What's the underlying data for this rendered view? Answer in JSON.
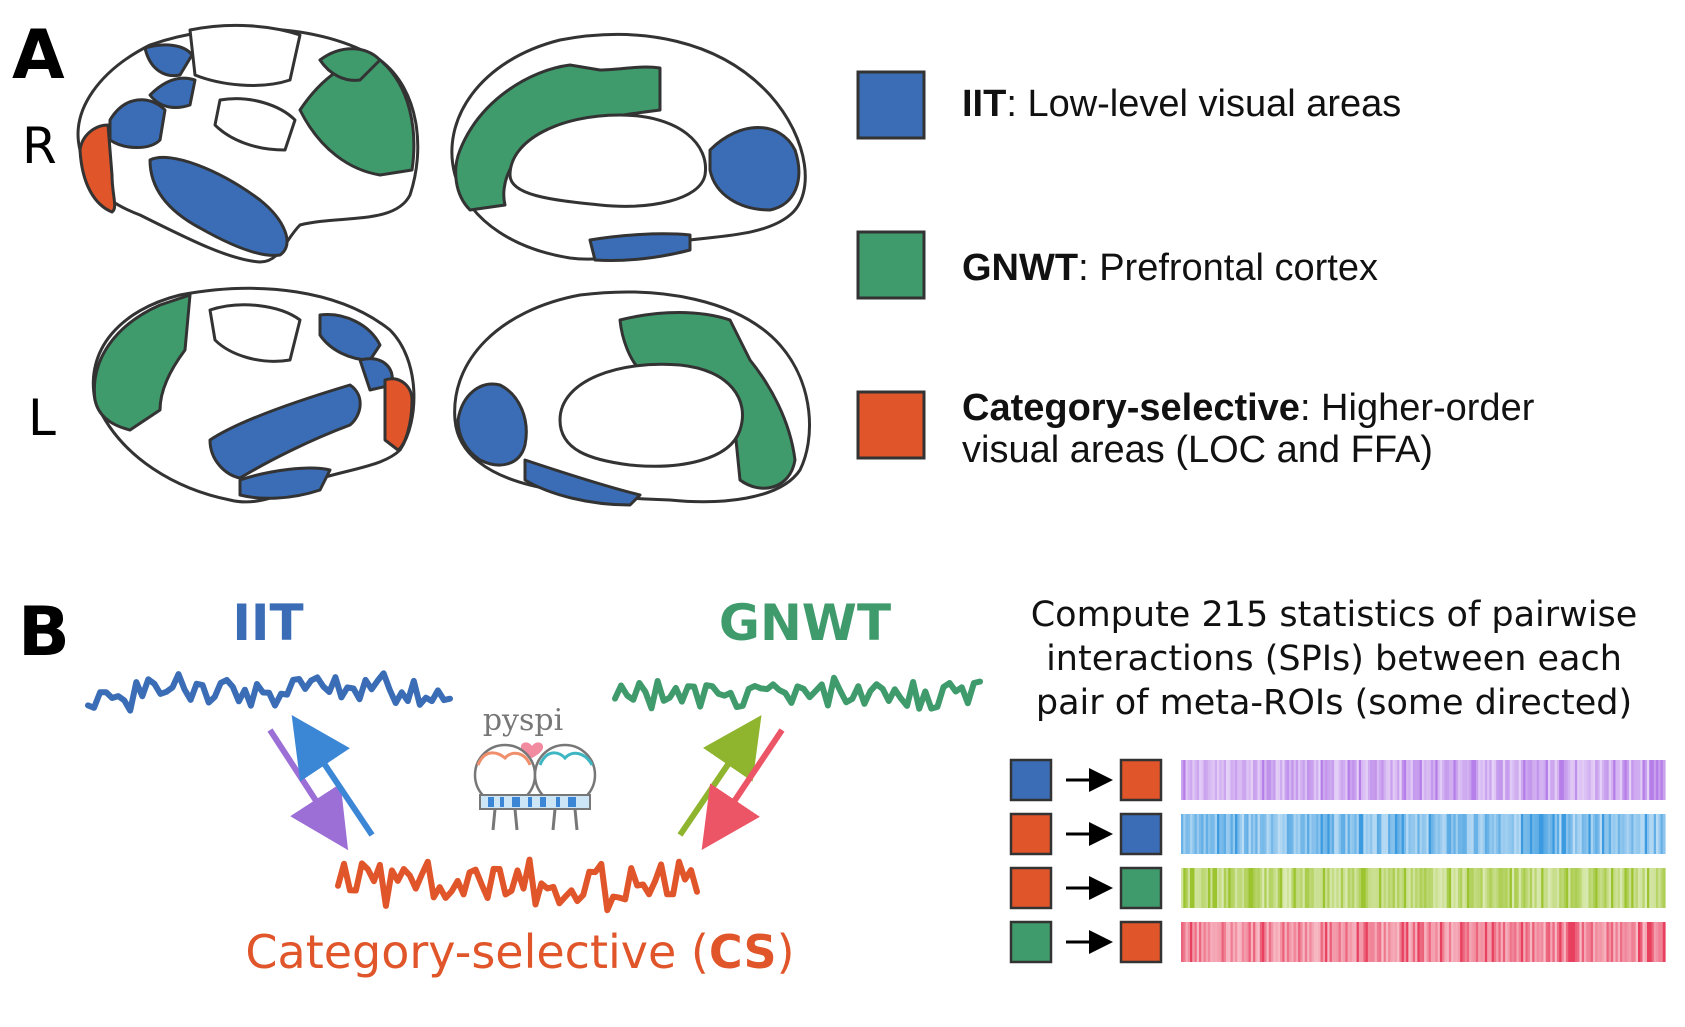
{
  "panel_a": {
    "letter": "A",
    "hemisphere_labels": [
      "R",
      "L"
    ],
    "legend": [
      {
        "bold": "IIT",
        "rest": ": Low-level visual areas",
        "rest2": "",
        "color": "#3a6db5"
      },
      {
        "bold": "GNWT",
        "rest": ": Prefrontal cortex",
        "rest2": "",
        "color": "#3f9a6c"
      },
      {
        "bold": "Category-selective",
        "rest": ": Higher-order",
        "rest2": "visual areas (LOC and FFA)",
        "color": "#e0552a"
      }
    ]
  },
  "panel_b": {
    "letter": "B",
    "iit_label": "IIT",
    "gnwt_label": "GNWT",
    "cs_label_prefix": "Category-selective (",
    "cs_label_bold": "CS",
    "cs_label_suffix": ")",
    "pyspi_logo": "pyspi",
    "compute_text": [
      "Compute 215 statistics of pairwise",
      "interactions (SPIs) between each",
      "pair of meta-ROIs (some directed)"
    ],
    "pairs": [
      {
        "from": "IIT",
        "to": "CS",
        "from_color": "#3a6db5",
        "to_color": "#e0552a",
        "bar_color": "#b57ee8"
      },
      {
        "from": "CS",
        "to": "IIT",
        "from_color": "#e0552a",
        "to_color": "#3a6db5",
        "bar_color": "#3c9be0"
      },
      {
        "from": "CS",
        "to": "GNWT",
        "from_color": "#e0552a",
        "to_color": "#3f9a6c",
        "bar_color": "#9cc42f"
      },
      {
        "from": "GNWT",
        "to": "CS",
        "from_color": "#3f9a6c",
        "to_color": "#e0552a",
        "bar_color": "#e8415f"
      }
    ],
    "arrow_colors": {
      "iit_to_cs": "#9b6fd6",
      "cs_to_iit": "#3c86d6",
      "cs_to_gnwt": "#8fb52e",
      "gnwt_to_cs": "#ec5566"
    }
  },
  "colors": {
    "iit": "#3a6db5",
    "gnwt": "#3f9a6c",
    "cs": "#e0552a",
    "outline": "#333333"
  }
}
